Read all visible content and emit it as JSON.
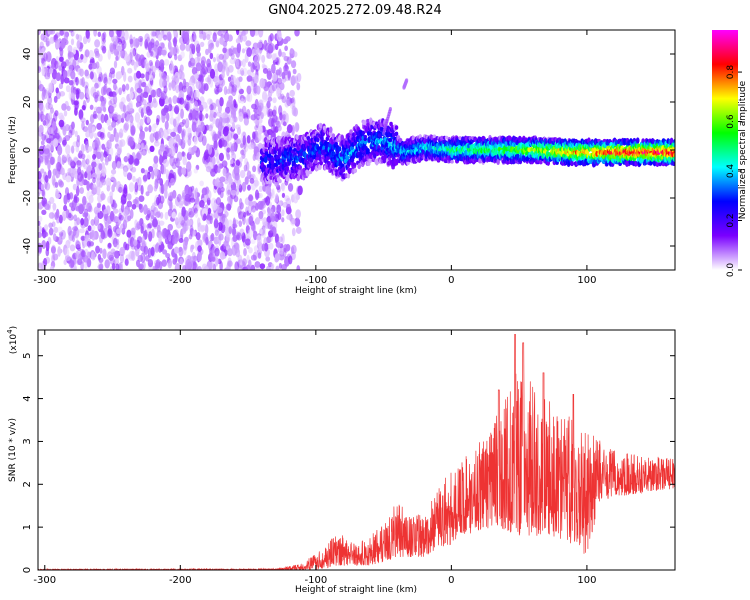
{
  "title": "GN04.2025.272.09.48.R24",
  "chart_data": [
    {
      "type": "heatmap",
      "name": "spectrogram",
      "xlabel": "Height of straight line (km)",
      "ylabel": "Frequency (Hz)",
      "xlim": [
        -305,
        165
      ],
      "ylim": [
        -50,
        50
      ],
      "xticks": [
        -300,
        -200,
        -100,
        0,
        100
      ],
      "yticks": [
        -40,
        -20,
        0,
        20,
        40
      ],
      "colorbar": {
        "label": "Normalized spectral amplitude",
        "range": [
          0,
          0.97
        ],
        "ticks": [
          0.0,
          0.2,
          0.4,
          0.6,
          0.8
        ],
        "tick_labels": [
          "0.0",
          "0.2",
          "0.4",
          "0.6",
          "0.8"
        ],
        "colors": [
          "#ffffff",
          "#7a00ff",
          "#0000ff",
          "#00ffff",
          "#00ff00",
          "#ffff00",
          "#ff0000",
          "#ff00ff"
        ]
      },
      "noise_region": {
        "x": [
          -305,
          -125
        ],
        "freq": [
          -50,
          50
        ],
        "amplitude": [
          0.02,
          0.12
        ]
      },
      "signal_track": [
        {
          "x": -140,
          "f": -5,
          "amp": 0.25
        },
        {
          "x": -125,
          "f": -4,
          "amp": 0.3
        },
        {
          "x": -110,
          "f": -3,
          "amp": 0.3
        },
        {
          "x": -95,
          "f": 2,
          "amp": 0.3
        },
        {
          "x": -80,
          "f": -4,
          "amp": 0.35
        },
        {
          "x": -65,
          "f": 3,
          "amp": 0.35
        },
        {
          "x": -50,
          "f": 4,
          "amp": 0.35
        },
        {
          "x": -35,
          "f": -1,
          "amp": 0.4
        },
        {
          "x": -20,
          "f": 1,
          "amp": 0.4
        },
        {
          "x": 0,
          "f": 0,
          "amp": 0.5
        },
        {
          "x": 30,
          "f": 0,
          "amp": 0.55
        },
        {
          "x": 60,
          "f": 0,
          "amp": 0.65
        },
        {
          "x": 90,
          "f": -1,
          "amp": 0.75
        },
        {
          "x": 120,
          "f": -1,
          "amp": 0.85
        },
        {
          "x": 165,
          "f": -1,
          "amp": 0.9
        }
      ],
      "outlier_traces": [
        {
          "x": [
            -50,
            -45
          ],
          "f": [
            7,
            17
          ],
          "amp": 0.1
        },
        {
          "x": [
            -35,
            -33
          ],
          "f": [
            26,
            29
          ],
          "amp": 0.08
        }
      ]
    },
    {
      "type": "line",
      "name": "snr",
      "xlabel": "Height of straight line (km)",
      "ylabel": "SNR (10 * v/v)",
      "scale_label": "(x10",
      "scale_exponent": "4",
      "xlim": [
        -305,
        165
      ],
      "ylim": [
        0,
        5.6
      ],
      "xticks": [
        -300,
        -200,
        -100,
        0,
        100
      ],
      "yticks": [
        0,
        1,
        2,
        3,
        4,
        5
      ],
      "color": "#ee3333",
      "envelope": [
        {
          "x": -305,
          "lo": 0.0,
          "hi": 0.02
        },
        {
          "x": -130,
          "lo": 0.0,
          "hi": 0.03
        },
        {
          "x": -110,
          "lo": 0.0,
          "hi": 0.15
        },
        {
          "x": -100,
          "lo": 0.0,
          "hi": 0.4
        },
        {
          "x": -90,
          "lo": 0.05,
          "hi": 0.7
        },
        {
          "x": -80,
          "lo": 0.1,
          "hi": 0.9
        },
        {
          "x": -70,
          "lo": 0.1,
          "hi": 0.6
        },
        {
          "x": -60,
          "lo": 0.1,
          "hi": 0.8
        },
        {
          "x": -50,
          "lo": 0.2,
          "hi": 1.1
        },
        {
          "x": -40,
          "lo": 0.3,
          "hi": 1.6
        },
        {
          "x": -30,
          "lo": 0.3,
          "hi": 1.3
        },
        {
          "x": -20,
          "lo": 0.3,
          "hi": 1.3
        },
        {
          "x": -10,
          "lo": 0.5,
          "hi": 1.9
        },
        {
          "x": 0,
          "lo": 0.6,
          "hi": 2.4
        },
        {
          "x": 10,
          "lo": 0.8,
          "hi": 2.7
        },
        {
          "x": 20,
          "lo": 0.9,
          "hi": 3.0
        },
        {
          "x": 30,
          "lo": 1.0,
          "hi": 3.4
        },
        {
          "x": 40,
          "lo": 0.9,
          "hi": 4.0
        },
        {
          "x": 50,
          "lo": 0.8,
          "hi": 4.9
        },
        {
          "x": 60,
          "lo": 0.8,
          "hi": 4.3
        },
        {
          "x": 70,
          "lo": 0.8,
          "hi": 4.0
        },
        {
          "x": 80,
          "lo": 0.7,
          "hi": 3.8
        },
        {
          "x": 90,
          "lo": 0.6,
          "hi": 3.6
        },
        {
          "x": 100,
          "lo": 0.3,
          "hi": 3.4
        },
        {
          "x": 110,
          "lo": 1.6,
          "hi": 3.0
        },
        {
          "x": 120,
          "lo": 1.7,
          "hi": 2.8
        },
        {
          "x": 140,
          "lo": 1.8,
          "hi": 2.7
        },
        {
          "x": 165,
          "lo": 1.9,
          "hi": 2.6
        }
      ],
      "peaks": [
        {
          "x": 35,
          "y": 4.2
        },
        {
          "x": 47,
          "y": 5.5
        },
        {
          "x": 53,
          "y": 5.3
        },
        {
          "x": 68,
          "y": 4.6
        },
        {
          "x": 90,
          "y": 4.1
        }
      ]
    }
  ]
}
